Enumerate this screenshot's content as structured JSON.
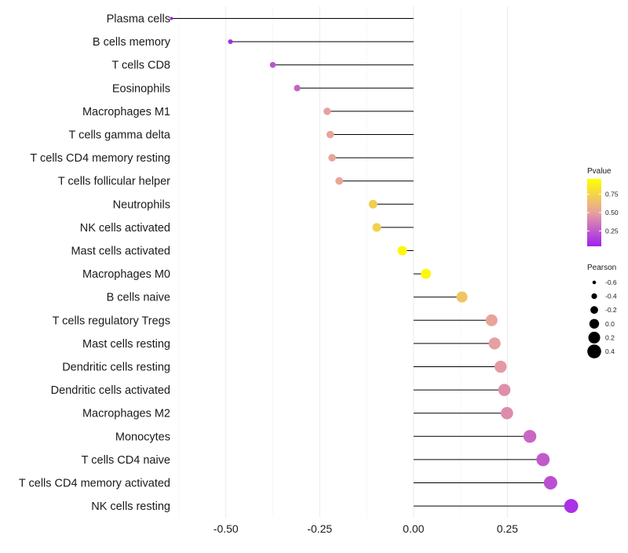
{
  "chart_data": {
    "type": "lollipop",
    "title": "",
    "xlabel": "",
    "ylabel": "",
    "xlim": [
      -0.625,
      0.425
    ],
    "xticks": [
      -0.5,
      -0.25,
      0.0,
      0.25
    ],
    "xtick_labels": [
      "-0.50",
      "-0.25",
      "0.00",
      "0.25"
    ],
    "points": [
      {
        "label": "Plasma cells",
        "pearson": -0.645,
        "pvalue": 0.05
      },
      {
        "label": "B cells memory",
        "pearson": -0.488,
        "pvalue": 0.08
      },
      {
        "label": "T cells CD8",
        "pearson": -0.375,
        "pvalue": 0.22
      },
      {
        "label": "Eosinophils",
        "pearson": -0.31,
        "pvalue": 0.28
      },
      {
        "label": "Macrophages M1",
        "pearson": -0.23,
        "pvalue": 0.5
      },
      {
        "label": "T cells gamma delta",
        "pearson": -0.222,
        "pvalue": 0.52
      },
      {
        "label": "T cells CD4 memory resting",
        "pearson": -0.217,
        "pvalue": 0.52
      },
      {
        "label": "T cells follicular helper",
        "pearson": -0.198,
        "pvalue": 0.53
      },
      {
        "label": "Neutrophils",
        "pearson": -0.108,
        "pvalue": 0.72
      },
      {
        "label": "NK cells activated",
        "pearson": -0.098,
        "pvalue": 0.73
      },
      {
        "label": "Mast cells activated",
        "pearson": -0.03,
        "pvalue": 0.92
      },
      {
        "label": "Macrophages M0",
        "pearson": 0.033,
        "pvalue": 0.92
      },
      {
        "label": "B cells naive",
        "pearson": 0.129,
        "pvalue": 0.68
      },
      {
        "label": "T cells regulatory  Tregs ",
        "pearson": 0.208,
        "pvalue": 0.52
      },
      {
        "label": "Mast cells resting",
        "pearson": 0.216,
        "pvalue": 0.5
      },
      {
        "label": "Dendritic cells resting",
        "pearson": 0.232,
        "pvalue": 0.48
      },
      {
        "label": "Dendritic cells activated",
        "pearson": 0.242,
        "pvalue": 0.44
      },
      {
        "label": "Macrophages M2",
        "pearson": 0.249,
        "pvalue": 0.43
      },
      {
        "label": "Monocytes",
        "pearson": 0.31,
        "pvalue": 0.3
      },
      {
        "label": "T cells CD4 naive",
        "pearson": 0.345,
        "pvalue": 0.25
      },
      {
        "label": "T cells CD4 memory activated",
        "pearson": 0.365,
        "pvalue": 0.21
      },
      {
        "label": "NK cells resting",
        "pearson": 0.42,
        "pvalue": 0.1
      }
    ],
    "legend_color": {
      "title": "Pvalue",
      "min": 0.04,
      "max": 0.96,
      "ticks": [
        0.25,
        0.5,
        0.75
      ],
      "tick_labels": [
        "0.25",
        "0.50",
        "0.75"
      ],
      "low_color": "#a020f0",
      "mid_color": "#e7a0a0",
      "high_color": "#ffff00"
    },
    "legend_size": {
      "title": "Pearson",
      "values": [
        -0.6,
        -0.4,
        -0.2,
        0.0,
        0.2,
        0.4
      ],
      "labels": [
        "-0.6",
        "-0.4",
        "-0.2",
        "0.0",
        "0.2",
        "0.4"
      ]
    }
  }
}
